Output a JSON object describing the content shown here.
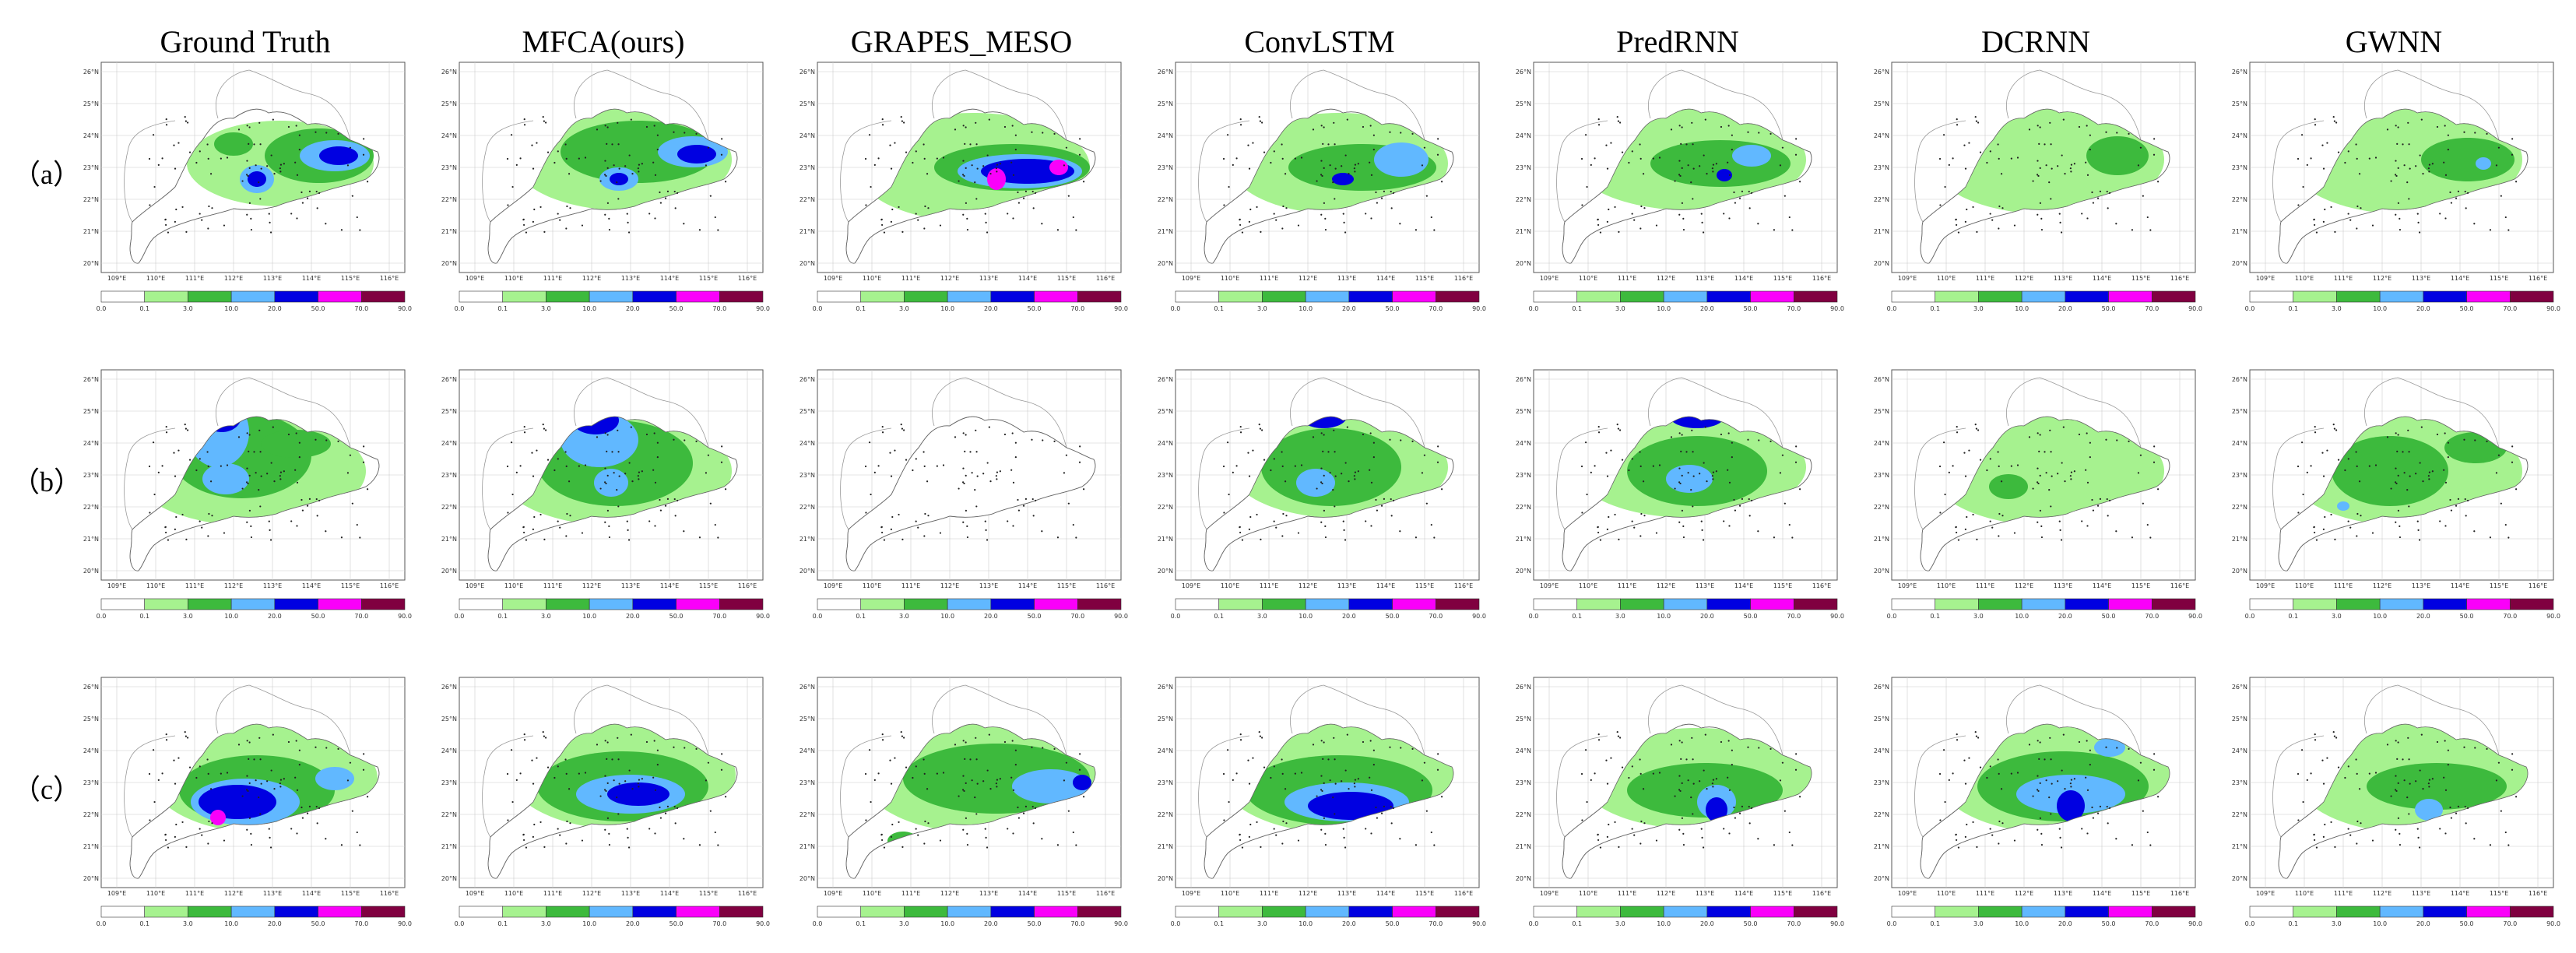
{
  "figure": {
    "columns": [
      "Ground Truth",
      "MFCA(ours)",
      "GRAPES_MESO",
      "ConvLSTM",
      "PredRNN",
      "DCRNN",
      "GWNN"
    ],
    "rows": [
      "（a）",
      "（b）",
      "（c）"
    ],
    "lat_ticks": [
      "20°N",
      "21°N",
      "22°N",
      "23°N",
      "24°N",
      "25°N",
      "26°N"
    ],
    "lon_ticks": [
      "109°E",
      "110°E",
      "111°E",
      "112°E",
      "113°E",
      "114°E",
      "115°E",
      "116°E"
    ],
    "colorbar": {
      "ticks": [
        "0.0",
        "0.1",
        "3.0",
        "10.0",
        "20.0",
        "50.0",
        "70.0",
        "90.0"
      ],
      "colors": [
        "#ffffff",
        "#a6f28f",
        "#3dba3d",
        "#61b8ff",
        "#0000e1",
        "#fa00fa",
        "#800040"
      ]
    }
  }
}
